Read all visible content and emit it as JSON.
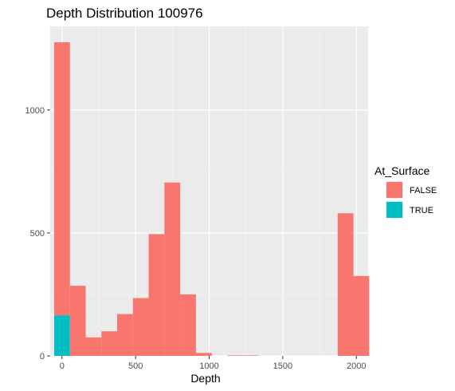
{
  "chart_data": {
    "type": "bar",
    "subtype": "stacked-histogram",
    "title": "Depth Distribution 100976",
    "xlabel": "Depth",
    "ylabel": "",
    "xlim": [
      -80,
      2080
    ],
    "ylim": [
      0,
      1340
    ],
    "x_ticks": [
      0,
      500,
      1000,
      1500,
      2000
    ],
    "x_tick_labels": [
      "0",
      "500",
      "1000",
      "1500",
      "2000"
    ],
    "y_ticks": [
      0,
      500,
      1000
    ],
    "y_tick_labels": [
      "0",
      "500",
      "1000"
    ],
    "bin_width": 107,
    "bins": [
      -53,
      54,
      161,
      268,
      375,
      482,
      589,
      696,
      803,
      910,
      1017,
      1124,
      1231,
      1338,
      1445,
      1552,
      1659,
      1766,
      1873,
      1980
    ],
    "background": "#ebebeb",
    "grid": true,
    "legend": {
      "title": "At_Surface",
      "position": "right"
    },
    "series": [
      {
        "name": "FALSE",
        "color": "#f8766d",
        "values": [
          1110,
          285,
          75,
          100,
          170,
          235,
          495,
          705,
          250,
          12,
          0,
          2,
          2,
          0,
          0,
          0,
          0,
          0,
          580,
          325
        ]
      },
      {
        "name": "TRUE",
        "color": "#00bfc4",
        "values": [
          165,
          0,
          0,
          0,
          0,
          0,
          0,
          0,
          0,
          0,
          0,
          0,
          0,
          0,
          0,
          0,
          0,
          0,
          0,
          0
        ]
      }
    ]
  }
}
